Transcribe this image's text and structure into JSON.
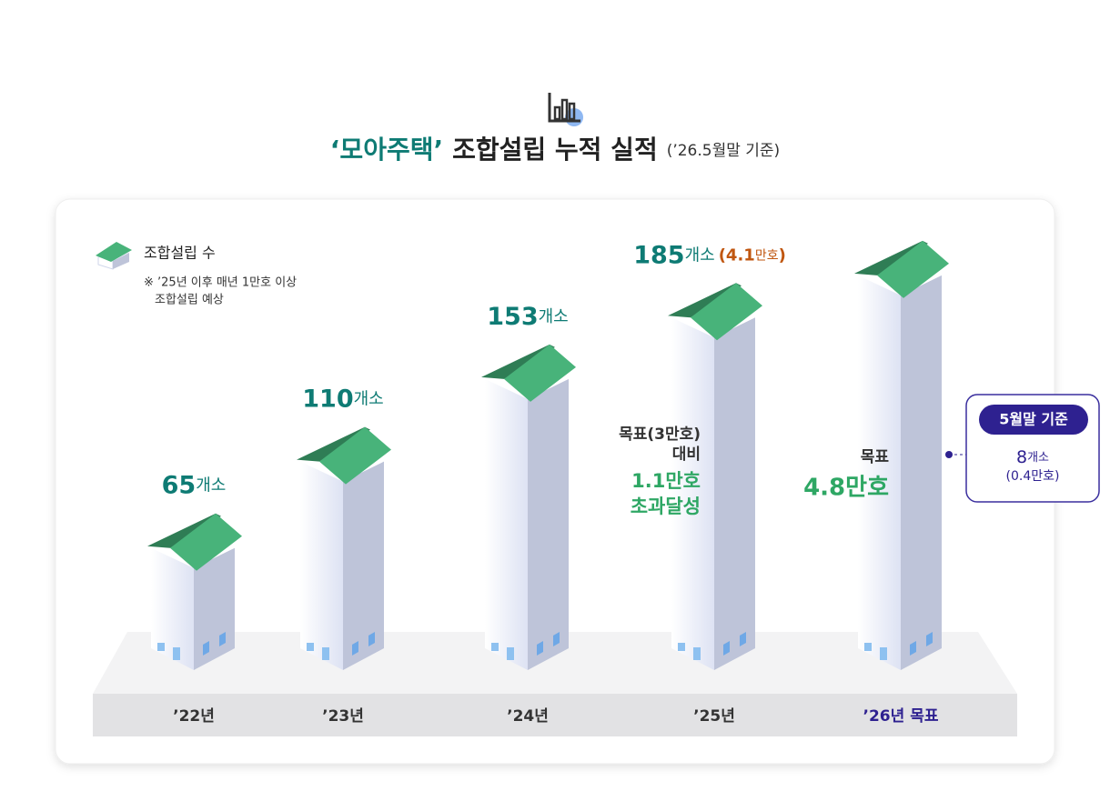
{
  "header": {
    "quote": "‘모아주택’",
    "title": "조합설립 누적 실적",
    "note": "(’26.5월말 기준)"
  },
  "chart_data": {
    "type": "bar",
    "legend": "조합설립 수",
    "footnote": [
      "※ ’25년 이후 매년 1만호 이상",
      "조합설립 예상"
    ],
    "categories": [
      "’22년",
      "’23년",
      "’24년",
      "’25년",
      "’26년 목표"
    ],
    "values": [
      65,
      110,
      153,
      185,
      207
    ],
    "value_labels": [
      "65",
      "110",
      "153",
      "185",
      null
    ],
    "unit": "개소",
    "ylim": [
      0,
      250
    ],
    "roof_color": "#48b37a",
    "roof_dark": "#2f7d55",
    "wall_color": "#bec4d9",
    "extra_185": [
      "(",
      "4.1",
      "만호",
      ")"
    ],
    "annotation_25": [
      "목표(3만호)",
      "대비",
      "1.1만호",
      "초과달성"
    ],
    "annotation_26": [
      "목표",
      "4.8만호"
    ],
    "callout": {
      "badge": "5월말 기준",
      "count": "8",
      "unit": "개소",
      "sub": "(0.4만호)"
    }
  }
}
